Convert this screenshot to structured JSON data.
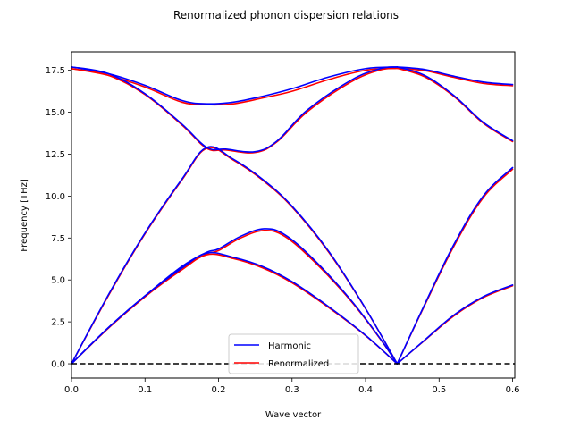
{
  "chart_data": {
    "type": "line",
    "title": "Renormalized phonon dispersion relations",
    "xlabel": "Wave vector",
    "ylabel": "Frequency [THz]",
    "xlim": [
      0.0,
      0.603
    ],
    "ylim": [
      -0.85,
      18.6
    ],
    "x_ticks": [
      0.0,
      0.1,
      0.2,
      0.3,
      0.4,
      0.5,
      0.6
    ],
    "x_tick_labels": [
      "0.0",
      "0.1",
      "0.2",
      "0.3",
      "0.4",
      "0.5",
      "0.6"
    ],
    "y_ticks": [
      0.0,
      2.5,
      5.0,
      7.5,
      10.0,
      12.5,
      15.0,
      17.5
    ],
    "y_tick_labels": [
      "0.0",
      "2.5",
      "5.0",
      "7.5",
      "10.0",
      "12.5",
      "15.0",
      "17.5"
    ],
    "grid": false,
    "legend": {
      "position": "lower-center"
    },
    "reference_line": {
      "y": 0.0,
      "style": "dashed",
      "color": "#000000"
    },
    "series": [
      {
        "name": "Harmonic",
        "color": "#0000ff",
        "branches": [
          [
            [
              0,
              0
            ],
            [
              0.05,
              2.15
            ],
            [
              0.1,
              4.05
            ],
            [
              0.15,
              5.7
            ],
            [
              0.184,
              6.6
            ],
            [
              0.22,
              6.35
            ],
            [
              0.26,
              5.8
            ],
            [
              0.3,
              4.9
            ],
            [
              0.35,
              3.4
            ],
            [
              0.4,
              1.7
            ],
            [
              0.443,
              0
            ]
          ],
          [
            [
              0,
              0
            ],
            [
              0.05,
              2.15
            ],
            [
              0.1,
              4.05
            ],
            [
              0.15,
              5.8
            ],
            [
              0.184,
              6.65
            ],
            [
              0.2,
              6.85
            ],
            [
              0.23,
              7.6
            ],
            [
              0.262,
              8.05
            ],
            [
              0.29,
              7.7
            ],
            [
              0.33,
              6.2
            ],
            [
              0.38,
              3.8
            ],
            [
              0.42,
              1.5
            ],
            [
              0.443,
              0
            ]
          ],
          [
            [
              0,
              0
            ],
            [
              0.05,
              4.1
            ],
            [
              0.1,
              7.8
            ],
            [
              0.15,
              11.0
            ],
            [
              0.184,
              12.9
            ],
            [
              0.22,
              12.2
            ],
            [
              0.26,
              11.0
            ],
            [
              0.3,
              9.4
            ],
            [
              0.35,
              6.7
            ],
            [
              0.4,
              3.3
            ],
            [
              0.443,
              0
            ]
          ],
          [
            [
              0,
              17.7
            ],
            [
              0.05,
              17.3
            ],
            [
              0.1,
              16.1
            ],
            [
              0.15,
              14.3
            ],
            [
              0.184,
              12.9
            ],
            [
              0.21,
              12.8
            ],
            [
              0.25,
              12.65
            ],
            [
              0.28,
              13.3
            ],
            [
              0.32,
              15.1
            ],
            [
              0.38,
              16.9
            ],
            [
              0.42,
              17.6
            ],
            [
              0.443,
              17.7
            ]
          ],
          [
            [
              0,
              17.7
            ],
            [
              0.05,
              17.3
            ],
            [
              0.1,
              16.6
            ],
            [
              0.15,
              15.7
            ],
            [
              0.184,
              15.5
            ],
            [
              0.22,
              15.6
            ],
            [
              0.26,
              15.95
            ],
            [
              0.3,
              16.4
            ],
            [
              0.35,
              17.1
            ],
            [
              0.4,
              17.6
            ],
            [
              0.443,
              17.7
            ]
          ],
          [
            [
              0.443,
              0
            ],
            [
              0.48,
              1.4
            ],
            [
              0.52,
              2.9
            ],
            [
              0.56,
              4.0
            ],
            [
              0.6,
              4.7
            ]
          ],
          [
            [
              0.443,
              0
            ],
            [
              0.48,
              3.5
            ],
            [
              0.52,
              7.1
            ],
            [
              0.56,
              10.0
            ],
            [
              0.6,
              11.7
            ]
          ],
          [
            [
              0.443,
              17.7
            ],
            [
              0.48,
              17.2
            ],
            [
              0.52,
              16.0
            ],
            [
              0.56,
              14.4
            ],
            [
              0.6,
              13.3
            ]
          ],
          [
            [
              0.443,
              17.7
            ],
            [
              0.48,
              17.55
            ],
            [
              0.52,
              17.15
            ],
            [
              0.56,
              16.8
            ],
            [
              0.6,
              16.65
            ]
          ]
        ]
      },
      {
        "name": "Renormalized",
        "color": "#ff0000",
        "branches": [
          [
            [
              0,
              0
            ],
            [
              0.05,
              2.12
            ],
            [
              0.1,
              4.0
            ],
            [
              0.15,
              5.6
            ],
            [
              0.184,
              6.5
            ],
            [
              0.22,
              6.28
            ],
            [
              0.26,
              5.72
            ],
            [
              0.3,
              4.83
            ],
            [
              0.35,
              3.35
            ],
            [
              0.4,
              1.68
            ],
            [
              0.443,
              0
            ]
          ],
          [
            [
              0,
              0
            ],
            [
              0.05,
              2.12
            ],
            [
              0.1,
              4.0
            ],
            [
              0.15,
              5.7
            ],
            [
              0.184,
              6.55
            ],
            [
              0.2,
              6.75
            ],
            [
              0.23,
              7.5
            ],
            [
              0.262,
              7.95
            ],
            [
              0.29,
              7.6
            ],
            [
              0.33,
              6.1
            ],
            [
              0.38,
              3.75
            ],
            [
              0.42,
              1.48
            ],
            [
              0.443,
              0
            ]
          ],
          [
            [
              0,
              0
            ],
            [
              0.05,
              4.05
            ],
            [
              0.1,
              7.75
            ],
            [
              0.15,
              10.95
            ],
            [
              0.184,
              12.85
            ],
            [
              0.22,
              12.15
            ],
            [
              0.26,
              10.95
            ],
            [
              0.3,
              9.35
            ],
            [
              0.35,
              6.65
            ],
            [
              0.4,
              3.28
            ],
            [
              0.443,
              0
            ]
          ],
          [
            [
              0,
              17.6
            ],
            [
              0.05,
              17.2
            ],
            [
              0.1,
              16.05
            ],
            [
              0.15,
              14.25
            ],
            [
              0.184,
              12.85
            ],
            [
              0.21,
              12.75
            ],
            [
              0.25,
              12.6
            ],
            [
              0.28,
              13.25
            ],
            [
              0.32,
              15.0
            ],
            [
              0.38,
              16.8
            ],
            [
              0.42,
              17.52
            ],
            [
              0.443,
              17.62
            ]
          ],
          [
            [
              0,
              17.6
            ],
            [
              0.05,
              17.2
            ],
            [
              0.1,
              16.5
            ],
            [
              0.15,
              15.6
            ],
            [
              0.184,
              15.45
            ],
            [
              0.22,
              15.5
            ],
            [
              0.26,
              15.85
            ],
            [
              0.3,
              16.25
            ],
            [
              0.35,
              16.95
            ],
            [
              0.4,
              17.5
            ],
            [
              0.443,
              17.62
            ]
          ],
          [
            [
              0.443,
              0
            ],
            [
              0.48,
              1.38
            ],
            [
              0.52,
              2.85
            ],
            [
              0.56,
              3.95
            ],
            [
              0.6,
              4.65
            ]
          ],
          [
            [
              0.443,
              0
            ],
            [
              0.48,
              3.45
            ],
            [
              0.52,
              7.0
            ],
            [
              0.56,
              9.9
            ],
            [
              0.6,
              11.6
            ]
          ],
          [
            [
              0.443,
              17.62
            ],
            [
              0.48,
              17.12
            ],
            [
              0.52,
              15.95
            ],
            [
              0.56,
              14.35
            ],
            [
              0.6,
              13.25
            ]
          ],
          [
            [
              0.443,
              17.62
            ],
            [
              0.48,
              17.48
            ],
            [
              0.52,
              17.08
            ],
            [
              0.56,
              16.72
            ],
            [
              0.6,
              16.58
            ]
          ]
        ]
      }
    ]
  }
}
